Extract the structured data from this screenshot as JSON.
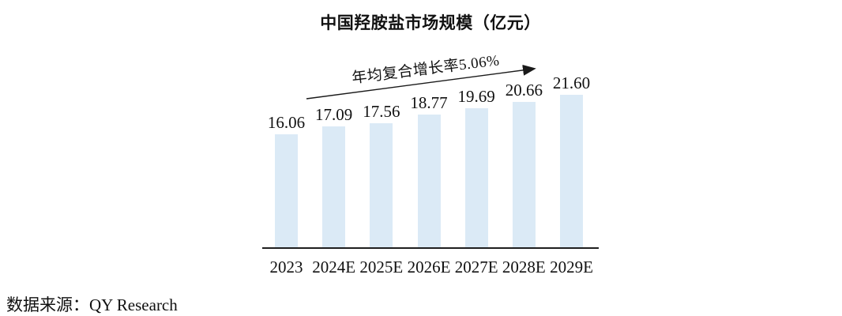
{
  "source_note": "数据来源：QY Research",
  "colors": {
    "bar_fill": "#DBEAF6",
    "axis_line": "#1f1f1f",
    "text": "#111111",
    "arrow": "#1a1a1a"
  },
  "chart_data": {
    "type": "bar",
    "title": "中国羟胺盐市场规模（亿元）",
    "categories": [
      "2023",
      "2024E",
      "2025E",
      "2026E",
      "2027E",
      "2028E",
      "2029E"
    ],
    "values": [
      16.06,
      17.09,
      17.56,
      18.77,
      19.69,
      20.66,
      21.6
    ],
    "value_labels": [
      "16.06",
      "17.09",
      "17.56",
      "18.77",
      "19.69",
      "20.66",
      "21.60"
    ],
    "annotation": "年均复合增长率5.06%",
    "xlabel": "",
    "ylabel": "",
    "ylim": [
      0,
      24
    ],
    "grid": false,
    "legend": null,
    "bar_color": "#DBEAF6",
    "baseline_value": 0
  }
}
